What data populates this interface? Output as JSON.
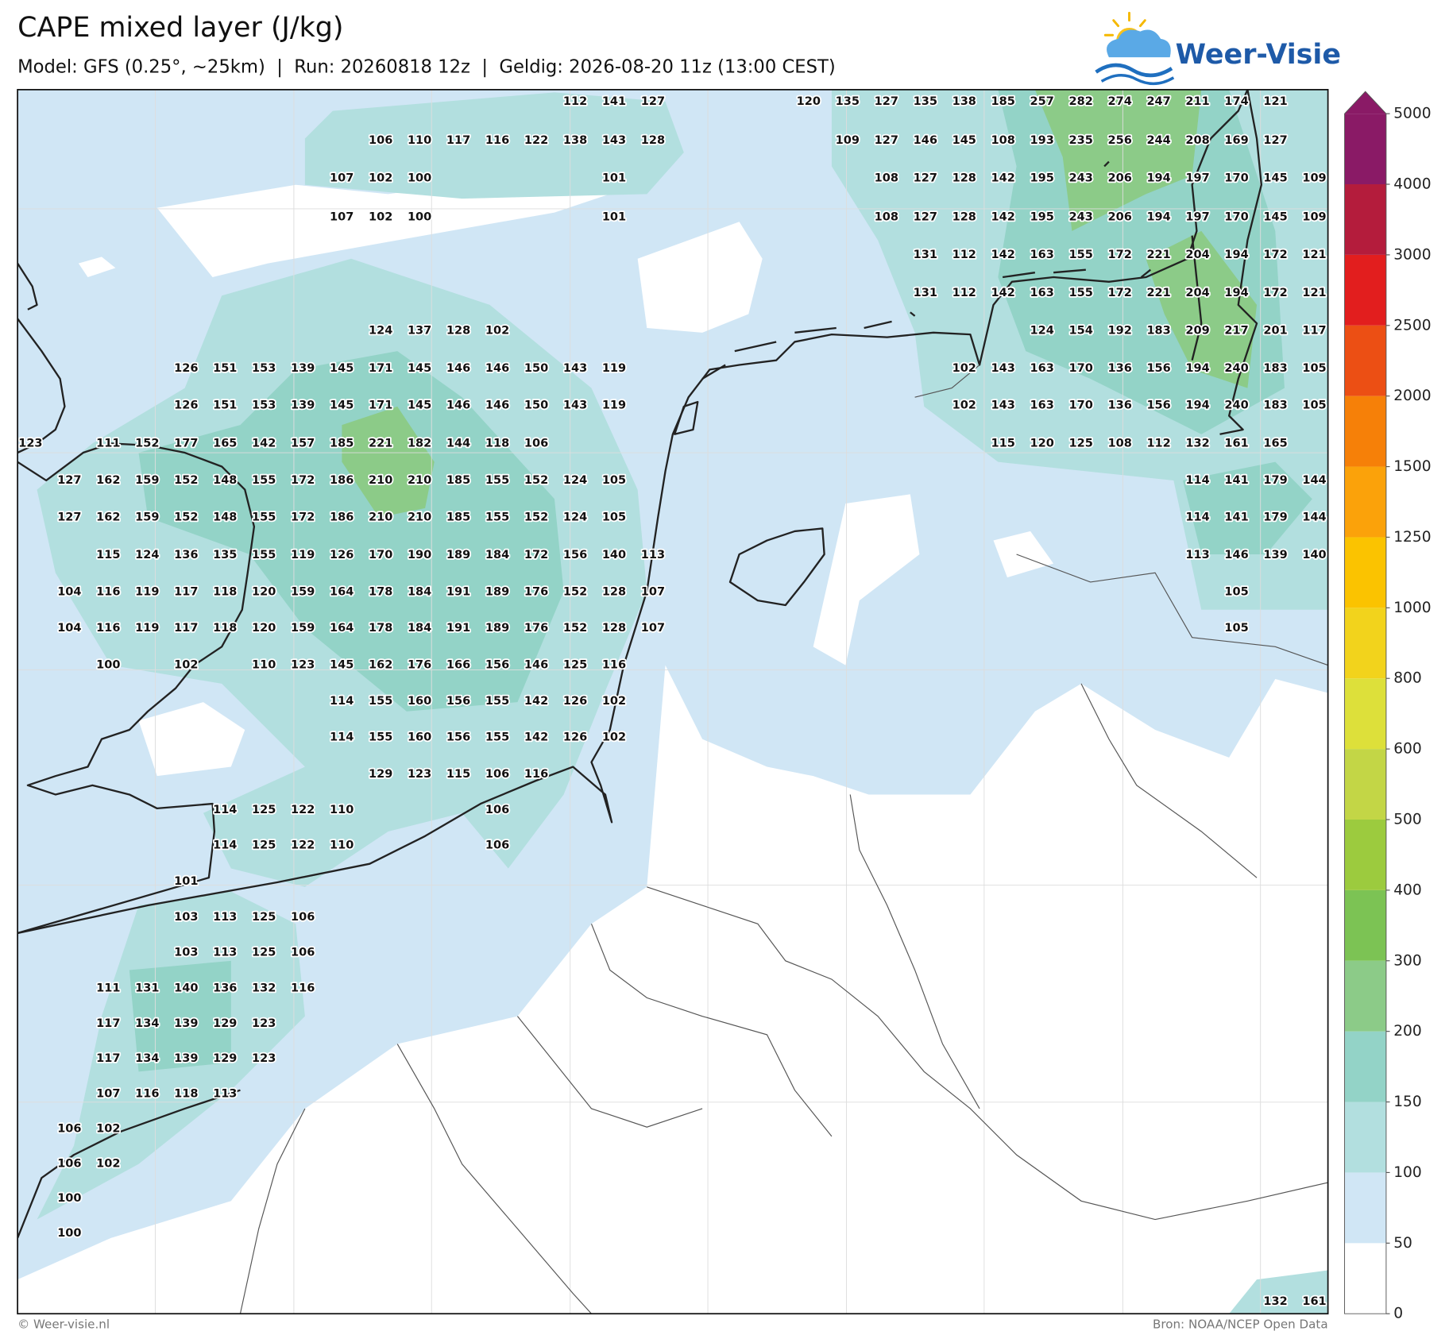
{
  "header": {
    "title": "CAPE mixed layer (J/kg)",
    "subtitle": "Model: GFS (0.25°, ~25km)  |  Run: 20260818 12z  |  Geldig: 2026-08-20 11z (13:00 CEST)"
  },
  "logo": {
    "text": "Weer-Visie"
  },
  "colorbar": {
    "ticks": [
      0,
      50,
      100,
      150,
      200,
      300,
      400,
      500,
      600,
      800,
      1000,
      1250,
      1500,
      2000,
      2500,
      3000,
      4000,
      5000
    ],
    "colors": [
      "#ffffff",
      "#d0e6f5",
      "#b2dfdf",
      "#93d3c7",
      "#8ccb88",
      "#7cc354",
      "#9ccb3e",
      "#c3d646",
      "#dde03a",
      "#f2d31c",
      "#fbc300",
      "#fba20a",
      "#f68008",
      "#ec4f14",
      "#e21e1e",
      "#b41c3c",
      "#8a1a66"
    ],
    "extend_color": "#8a1a66"
  },
  "map": {
    "grid_values": [
      [
        null,
        null,
        null,
        null,
        null,
        null,
        null,
        null,
        null,
        null,
        null,
        null,
        null,
        null,
        112,
        141,
        127,
        null,
        null,
        null,
        120,
        135,
        127,
        135,
        138,
        185,
        257,
        282,
        274,
        247,
        211,
        174,
        121
      ],
      [
        null,
        null,
        null,
        null,
        null,
        null,
        null,
        null,
        null,
        106,
        110,
        117,
        116,
        122,
        138,
        143,
        128,
        null,
        null,
        null,
        null,
        109,
        127,
        146,
        145,
        108,
        193,
        235,
        256,
        244,
        208,
        169,
        127
      ],
      [
        null,
        null,
        null,
        null,
        null,
        null,
        null,
        null,
        107,
        102,
        100,
        null,
        null,
        null,
        null,
        101,
        null,
        null,
        null,
        null,
        null,
        null,
        108,
        127,
        128,
        142,
        195,
        243,
        206,
        194,
        197,
        170,
        145,
        109
      ],
      [
        null,
        null,
        null,
        null,
        null,
        null,
        null,
        null,
        107,
        102,
        100,
        null,
        null,
        null,
        null,
        101,
        null,
        null,
        null,
        null,
        null,
        null,
        108,
        127,
        128,
        142,
        195,
        243,
        206,
        194,
        197,
        170,
        145,
        109
      ],
      [
        null,
        null,
        null,
        null,
        null,
        null,
        null,
        null,
        null,
        null,
        null,
        null,
        null,
        null,
        null,
        null,
        null,
        null,
        null,
        null,
        null,
        null,
        null,
        131,
        112,
        142,
        163,
        155,
        172,
        221,
        204,
        194,
        172,
        121
      ],
      [
        null,
        null,
        null,
        null,
        null,
        null,
        null,
        null,
        null,
        null,
        null,
        null,
        null,
        null,
        null,
        null,
        null,
        null,
        null,
        null,
        null,
        null,
        null,
        131,
        112,
        142,
        163,
        155,
        172,
        221,
        204,
        194,
        172,
        121
      ],
      [
        null,
        null,
        null,
        null,
        null,
        null,
        null,
        null,
        null,
        124,
        137,
        128,
        102,
        null,
        null,
        null,
        null,
        null,
        null,
        null,
        null,
        null,
        null,
        null,
        null,
        null,
        124,
        154,
        192,
        183,
        209,
        217,
        201,
        117
      ],
      [
        null,
        null,
        null,
        null,
        126,
        151,
        153,
        139,
        145,
        171,
        145,
        146,
        146,
        150,
        143,
        119,
        null,
        null,
        null,
        null,
        null,
        null,
        null,
        null,
        102,
        143,
        163,
        170,
        136,
        156,
        194,
        240,
        183,
        105
      ],
      [
        null,
        null,
        null,
        null,
        126,
        151,
        153,
        139,
        145,
        171,
        145,
        146,
        146,
        150,
        143,
        119,
        null,
        null,
        null,
        null,
        null,
        null,
        null,
        null,
        102,
        143,
        163,
        170,
        136,
        156,
        194,
        240,
        183,
        105
      ],
      [
        123,
        null,
        111,
        152,
        177,
        165,
        142,
        157,
        185,
        221,
        182,
        144,
        118,
        106,
        null,
        null,
        null,
        null,
        null,
        null,
        null,
        null,
        null,
        null,
        null,
        115,
        120,
        125,
        108,
        112,
        132,
        161,
        165
      ],
      [
        null,
        127,
        162,
        159,
        152,
        148,
        155,
        172,
        186,
        210,
        210,
        185,
        155,
        152,
        124,
        105,
        null,
        null,
        null,
        null,
        null,
        null,
        null,
        null,
        null,
        null,
        null,
        null,
        null,
        null,
        114,
        141,
        179,
        144
      ],
      [
        null,
        127,
        162,
        159,
        152,
        148,
        155,
        172,
        186,
        210,
        210,
        185,
        155,
        152,
        124,
        105,
        null,
        null,
        null,
        null,
        null,
        null,
        null,
        null,
        null,
        null,
        null,
        null,
        null,
        null,
        114,
        141,
        179,
        144
      ],
      [
        null,
        null,
        115,
        124,
        136,
        135,
        155,
        119,
        126,
        170,
        190,
        189,
        184,
        172,
        156,
        140,
        113,
        null,
        null,
        null,
        null,
        null,
        null,
        null,
        null,
        null,
        null,
        null,
        null,
        null,
        113,
        146,
        139,
        140
      ],
      [
        null,
        104,
        116,
        119,
        117,
        118,
        120,
        159,
        164,
        178,
        184,
        191,
        189,
        176,
        152,
        128,
        107,
        null,
        null,
        null,
        null,
        null,
        null,
        null,
        null,
        null,
        null,
        null,
        null,
        null,
        null,
        105
      ],
      [
        null,
        104,
        116,
        119,
        117,
        118,
        120,
        159,
        164,
        178,
        184,
        191,
        189,
        176,
        152,
        128,
        107,
        null,
        null,
        null,
        null,
        null,
        null,
        null,
        null,
        null,
        null,
        null,
        null,
        null,
        null,
        105
      ],
      [
        null,
        null,
        100,
        null,
        102,
        null,
        110,
        123,
        145,
        162,
        176,
        166,
        156,
        146,
        125,
        116
      ],
      [
        null,
        null,
        null,
        null,
        null,
        null,
        null,
        null,
        114,
        155,
        160,
        156,
        155,
        142,
        126,
        102
      ],
      [
        null,
        null,
        null,
        null,
        null,
        null,
        null,
        null,
        114,
        155,
        160,
        156,
        155,
        142,
        126,
        102
      ],
      [
        null,
        null,
        null,
        null,
        null,
        null,
        null,
        null,
        null,
        129,
        123,
        115,
        106,
        116
      ],
      [
        null,
        null,
        null,
        null,
        null,
        114,
        125,
        122,
        110,
        null,
        null,
        null,
        106
      ],
      [
        null,
        null,
        null,
        null,
        null,
        114,
        125,
        122,
        110,
        null,
        null,
        null,
        106
      ],
      [
        null,
        null,
        null,
        null,
        101
      ],
      [
        null,
        null,
        null,
        null,
        103,
        113,
        125,
        106
      ],
      [
        null,
        null,
        null,
        null,
        103,
        113,
        125,
        106
      ],
      [
        null,
        null,
        111,
        131,
        140,
        136,
        132,
        116
      ],
      [
        null,
        null,
        117,
        134,
        139,
        129,
        123
      ],
      [
        null,
        null,
        117,
        134,
        139,
        129,
        123
      ],
      [
        null,
        null,
        107,
        116,
        118,
        113
      ],
      [
        null,
        106,
        102
      ],
      [
        null,
        106,
        102
      ],
      [
        null,
        100
      ],
      [
        null,
        100
      ],
      [],
      [
        null,
        null,
        null,
        null,
        null,
        null,
        null,
        null,
        null,
        null,
        null,
        null,
        null,
        null,
        null,
        null,
        null,
        null,
        null,
        null,
        null,
        null,
        null,
        null,
        null,
        null,
        null,
        null,
        null,
        null,
        null,
        null,
        132,
        161
      ]
    ]
  },
  "footer": {
    "copyright": "© Weer-visie.nl",
    "source": "Bron: NOAA/NCEP Open Data"
  }
}
